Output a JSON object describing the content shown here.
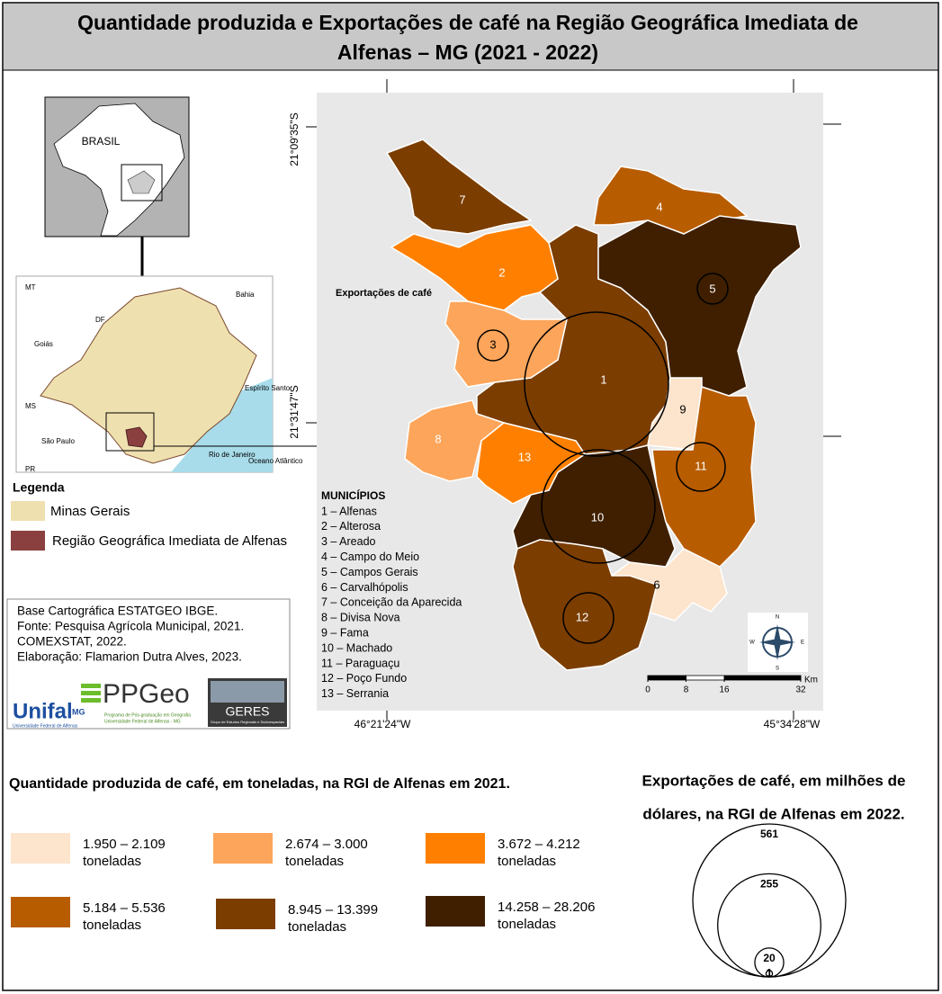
{
  "header": {
    "title_line1": "Quantidade produzida e Exportações de café na Região Geográfica Imediata de",
    "title_line2": "Alfenas – MG (2021 - 2022)"
  },
  "inset": {
    "brazil": "BRASIL",
    "states": [
      "MT",
      "Bahia",
      "DF",
      "Goiás",
      "Espírito Santo",
      "MS",
      "São Paulo",
      "PR",
      "Rio de Janeiro",
      "Oceano Atlântico"
    ]
  },
  "legend": {
    "title": "Legenda",
    "items": [
      {
        "label": "Minas Gerais",
        "color": "#efe0b0"
      },
      {
        "label": "Região Geográfica Imediata de Alfenas",
        "color": "#8b4040"
      }
    ]
  },
  "credits": [
    "Base Cartográfica ESTATGEO IBGE.",
    "Fonte: Pesquisa Agrícola Municipal, 2021.",
    "COMEXSTAT, 2022.",
    "Elaboração: Flamarion Dutra Alves, 2023."
  ],
  "logos": {
    "unifal": "Unifal",
    "unifal_sub": "MG",
    "unifal_caption": "Universidade Federal de Alfenas",
    "ppgeo": "PPGeo",
    "ppgeo_sub1": "Programa de Pós-graduação em Geografia",
    "ppgeo_sub2": "Universidade Federal de Alfenas - MG",
    "geres": "GERES",
    "geres_sub": "Grupo de Estudos Regionais e Socioespaciais"
  },
  "coordinates": {
    "lat_top": "21°09'35\"S",
    "lat_bottom": "21°31'47\"S",
    "lon_left": "46°21'24\"W",
    "lon_right": "45°34'28\"W"
  },
  "map": {
    "exports_label": "Exportações de café",
    "municipalities_title": "MUNICÍPIOS",
    "municipalities": [
      {
        "number": "1",
        "entry": "1 – Alfenas",
        "color": "#7b3d00"
      },
      {
        "number": "2",
        "entry": "2 – Alterosa",
        "color": "#ff8000"
      },
      {
        "number": "3",
        "entry": "3 – Areado",
        "color": "#fda55a"
      },
      {
        "number": "4",
        "entry": "4 – Campo do Meio",
        "color": "#b85c00"
      },
      {
        "number": "5",
        "entry": "5 – Campos Gerais",
        "color": "#3f1f00"
      },
      {
        "number": "6",
        "entry": "6 – Carvalhópolis",
        "color": "#fde4cc"
      },
      {
        "number": "7",
        "entry": "7 – Conceição da Aparecida",
        "color": "#7b3d00"
      },
      {
        "number": "8",
        "entry": "8 – Divisa Nova",
        "color": "#fda55a"
      },
      {
        "number": "9",
        "entry": "9 – Fama",
        "color": "#fde4cc"
      },
      {
        "number": "10",
        "entry": "10 – Machado",
        "color": "#3f1f00"
      },
      {
        "number": "11",
        "entry": "11 – Paraguaçu",
        "color": "#b85c00"
      },
      {
        "number": "12",
        "entry": "12 – Poço Fundo",
        "color": "#7b3d00"
      },
      {
        "number": "13",
        "entry": "13 – Serrania",
        "color": "#ff8000"
      }
    ],
    "scale": {
      "ticks": [
        0,
        8,
        16,
        32
      ],
      "unit": "Km"
    },
    "compass": [
      "N",
      "S",
      "E",
      "W"
    ]
  },
  "production_legend": {
    "title": "Quantidade produzida de café, em toneladas, na RGI de Alfenas em 2021.",
    "classes": [
      {
        "range": "1.950  –  2.109",
        "unit": "toneladas",
        "color": "#fde4cc"
      },
      {
        "range": "2.674 – 3.000",
        "unit": "toneladas",
        "color": "#fda55a"
      },
      {
        "range": "3.672 – 4.212",
        "unit": "toneladas",
        "color": "#ff8000"
      },
      {
        "range": "5.184  –  5.536",
        "unit": "toneladas",
        "color": "#b85c00"
      },
      {
        "range": "8.945 – 13.399",
        "unit": "toneladas",
        "color": "#7b3d00"
      },
      {
        "range": "14.258 – 28.206",
        "unit": "toneladas",
        "color": "#3f1f00"
      }
    ]
  },
  "export_legend": {
    "title_line1": "Exportações de café, em  milhões de",
    "title_line2": "dólares, na RGI de Alfenas em 2022.",
    "values": [
      561,
      255,
      20,
      1
    ]
  }
}
